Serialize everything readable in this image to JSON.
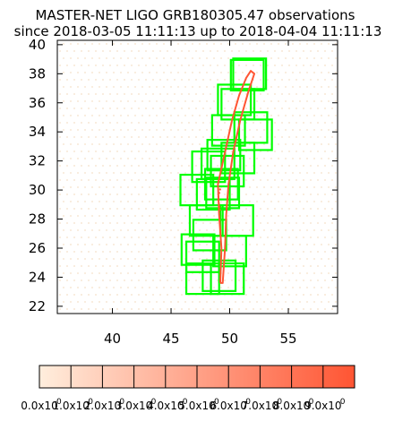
{
  "chart_data": {
    "type": "scatter",
    "title_line1": "MASTER-NET LIGO GRB180305.47 observations",
    "title_line2": "since 2018-03-05 11:11:13 up to 2018-04-04 11:11:13",
    "xlabel": "",
    "ylabel": "",
    "xlim": [
      35.3,
      59.2
    ],
    "ylim": [
      21.5,
      40.3
    ],
    "x_ticks": [
      "40",
      "45",
      "50",
      "55"
    ],
    "x_tick_values": [
      40,
      45,
      50,
      55
    ],
    "y_ticks": [
      "22",
      "24",
      "26",
      "28",
      "30",
      "32",
      "34",
      "36",
      "38",
      "40"
    ],
    "y_tick_values": [
      22,
      24,
      26,
      28,
      30,
      32,
      34,
      36,
      38,
      40
    ],
    "colors": {
      "field": "#00ff00",
      "contour": "#ff5533",
      "background_dots": "#f4e0c8"
    },
    "observed_fields": [
      {
        "ra": 51.7,
        "dec": 38.0
      },
      {
        "ra": 51.5,
        "dec": 37.9
      },
      {
        "ra": 50.4,
        "dec": 36.2
      },
      {
        "ra": 50.7,
        "dec": 35.9
      },
      {
        "ra": 49.9,
        "dec": 34.1
      },
      {
        "ra": 51.8,
        "dec": 34.3
      },
      {
        "ra": 52.2,
        "dec": 33.8
      },
      {
        "ra": 48.2,
        "dec": 31.6
      },
      {
        "ra": 49.5,
        "dec": 32.4
      },
      {
        "ra": 50.7,
        "dec": 32.2
      },
      {
        "ra": 49.0,
        "dec": 31.8
      },
      {
        "ra": 49.8,
        "dec": 31.3
      },
      {
        "ra": 49.3,
        "dec": 30.4
      },
      {
        "ra": 47.2,
        "dec": 30.0
      },
      {
        "ra": 49.4,
        "dec": 29.8
      },
      {
        "ra": 48.6,
        "dec": 29.7
      },
      {
        "ra": 48.0,
        "dec": 27.9
      },
      {
        "ra": 50.6,
        "dec": 27.9
      },
      {
        "ra": 48.3,
        "dec": 26.9
      },
      {
        "ra": 47.3,
        "dec": 25.9
      },
      {
        "ra": 50.0,
        "dec": 25.8
      },
      {
        "ra": 47.7,
        "dec": 25.4
      },
      {
        "ra": 47.7,
        "dec": 23.9
      },
      {
        "ra": 49.8,
        "dec": 23.9
      },
      {
        "ra": 49.1,
        "dec": 24.1
      }
    ],
    "contour_outer": [
      [
        49.2,
        23.6
      ],
      [
        49.3,
        26.0
      ],
      [
        49.1,
        28.3
      ],
      [
        49.0,
        30.4
      ],
      [
        49.6,
        32.6
      ],
      [
        50.2,
        34.8
      ],
      [
        50.8,
        36.5
      ],
      [
        51.4,
        37.7
      ],
      [
        51.8,
        38.2
      ],
      [
        52.1,
        38.0
      ],
      [
        51.6,
        36.8
      ],
      [
        50.9,
        34.8
      ],
      [
        50.3,
        32.6
      ],
      [
        49.9,
        30.4
      ],
      [
        49.7,
        28.3
      ],
      [
        49.6,
        26.0
      ],
      [
        49.4,
        23.6
      ],
      [
        49.2,
        23.6
      ]
    ],
    "contour_inner": [
      [
        49.2,
        30.1
      ],
      [
        49.0,
        29.4
      ],
      [
        49.2,
        28.6
      ]
    ],
    "colorbar": {
      "labels": [
        "0.0x10",
        "1.0x10",
        "2.0x10",
        "3.0x10",
        "4.0x10",
        "5.0x10",
        "6.0x10",
        "7.0x10",
        "8.0x10",
        "9.0x10"
      ],
      "exponent": "0",
      "color_min": "#ffeedd",
      "color_max": "#ff5533"
    }
  }
}
